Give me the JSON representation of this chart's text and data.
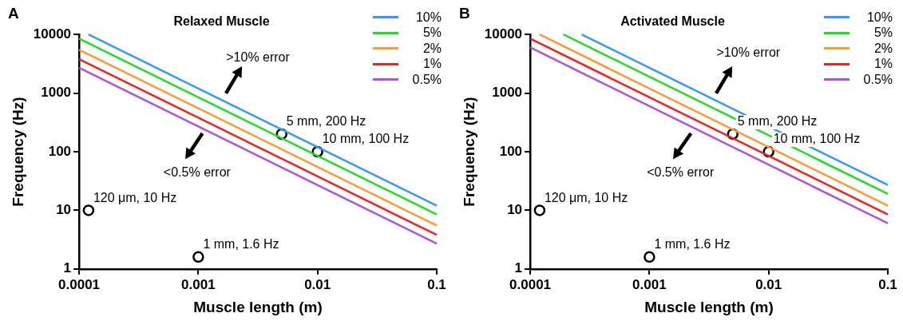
{
  "chart_data": [
    {
      "type": "line",
      "title": "Relaxed Muscle",
      "xlabel": "Muscle length (m)",
      "ylabel": "Frequency (Hz)",
      "log": "xy",
      "grid": false,
      "legend": "top right",
      "marker": "none",
      "line_style": "solid",
      "xlim": [
        0.0001,
        0.1
      ],
      "ylim": [
        1,
        10000
      ],
      "xticks": [
        0.0001,
        0.001,
        0.01,
        0.1
      ],
      "yticks": [
        1,
        10,
        100,
        1000,
        10000
      ],
      "series": [
        {
          "name": "10%",
          "color": "#3399ff",
          "x": [
            0.00012,
            0.1
          ],
          "values": [
            10000,
            12
          ]
        },
        {
          "name": "5%",
          "color": "#22dd22",
          "x": [
            0.0001,
            0.1
          ],
          "values": [
            8500,
            8.5
          ]
        },
        {
          "name": "2%",
          "color": "#ff9933",
          "x": [
            0.0001,
            0.1
          ],
          "values": [
            5500,
            5.5
          ]
        },
        {
          "name": "1%",
          "color": "#ee2222",
          "x": [
            0.0001,
            0.1
          ],
          "values": [
            3800,
            3.8
          ]
        },
        {
          "name": "0.5%",
          "color": "#aa55dd",
          "x": [
            0.0001,
            0.1
          ],
          "values": [
            2700,
            2.7
          ]
        },
        {
          "type": "scatter",
          "color": "#000000",
          "marker": "circle",
          "x": [
            0.00012,
            0.001,
            0.005,
            0.01
          ],
          "values": [
            10,
            1.6,
            200,
            100
          ]
        }
      ],
      "annotations": [
        "A",
        ">10% error",
        "<0.5% error",
        {
          "text": "120 μm, 10 Hz",
          "x": 0.00012,
          "y": 10
        },
        {
          "text": "1 mm, 1.6 Hz",
          "x": 0.001,
          "y": 1.6
        },
        {
          "text": "5 mm, 200 Hz",
          "x": 0.005,
          "y": 200
        },
        {
          "text": "10 mm, 100 Hz",
          "x": 0.01,
          "y": 100
        }
      ]
    },
    {
      "type": "line",
      "title": "Activated Muscle",
      "xlabel": "Muscle length (m)",
      "ylabel": "Frequency (Hz)",
      "log": "xy",
      "grid": false,
      "legend": "top right",
      "marker": "none",
      "line_style": "solid",
      "xlim": [
        0.0001,
        0.1
      ],
      "ylim": [
        1,
        10000
      ],
      "xticks": [
        0.0001,
        0.001,
        0.01,
        0.1
      ],
      "yticks": [
        1,
        10,
        100,
        1000,
        10000
      ],
      "series": [
        {
          "name": "10%",
          "color": "#3399ff",
          "x": [
            0.00027,
            0.1
          ],
          "values": [
            10000,
            27
          ]
        },
        {
          "name": "5%",
          "color": "#22dd22",
          "x": [
            0.00019,
            0.1
          ],
          "values": [
            10000,
            19
          ]
        },
        {
          "name": "2%",
          "color": "#ff9933",
          "x": [
            0.00012,
            0.1
          ],
          "values": [
            10000,
            12
          ]
        },
        {
          "name": "1%",
          "color": "#ee2222",
          "x": [
            0.0001,
            0.1
          ],
          "values": [
            8500,
            8.5
          ]
        },
        {
          "name": "0.5%",
          "color": "#aa55dd",
          "x": [
            0.0001,
            0.1
          ],
          "values": [
            6000,
            6
          ]
        },
        {
          "type": "scatter",
          "color": "#000000",
          "marker": "circle",
          "x": [
            0.00012,
            0.001,
            0.005,
            0.01
          ],
          "values": [
            10,
            1.6,
            200,
            100
          ]
        }
      ],
      "annotations": [
        "B",
        ">10% error",
        "<0.5% error",
        {
          "text": "120 μm, 10 Hz",
          "x": 0.00012,
          "y": 10
        },
        {
          "text": "1 mm, 1.6 Hz",
          "x": 0.001,
          "y": 1.6
        },
        {
          "text": "5 mm, 200 Hz",
          "x": 0.005,
          "y": 200
        },
        {
          "text": "10 mm, 100 Hz",
          "x": 0.01,
          "y": 100
        }
      ]
    }
  ]
}
